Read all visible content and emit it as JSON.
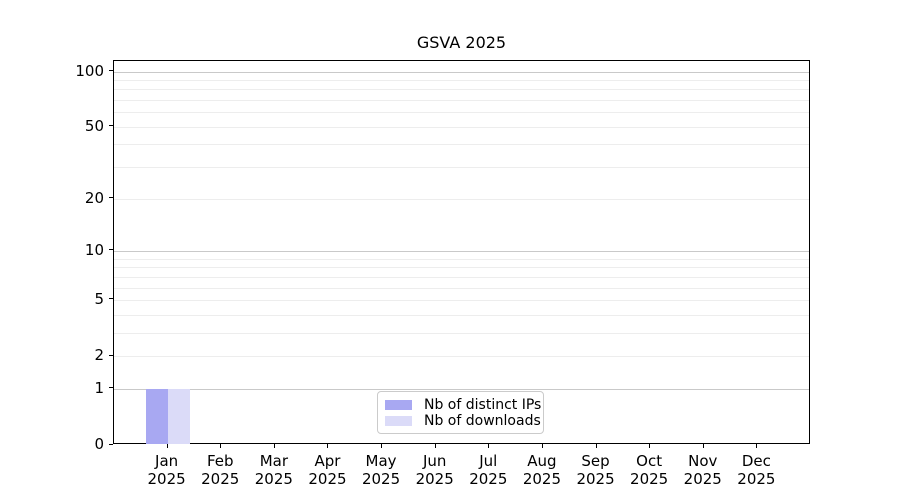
{
  "chart_data": {
    "type": "bar",
    "title": "GSVA 2025",
    "x_categories": [
      "Jan",
      "Feb",
      "Mar",
      "Apr",
      "May",
      "Jun",
      "Jul",
      "Aug",
      "Sep",
      "Oct",
      "Nov",
      "Dec"
    ],
    "x_year_label": "2025",
    "y_scale": "log10(1+x)",
    "ylim": [
      0,
      114
    ],
    "y_tick_labels": [
      0,
      1,
      2,
      5,
      10,
      20,
      50,
      100
    ],
    "major_gridlines": [
      1,
      10,
      100
    ],
    "minor_gridlines": [
      2,
      3,
      4,
      5,
      6,
      7,
      8,
      9,
      20,
      30,
      40,
      50,
      60,
      70,
      80,
      90
    ],
    "grid": "horizontal",
    "legend_position": "bottom-center",
    "series": [
      {
        "name": "Nb of distinct IPs",
        "color": "#a8a8f2",
        "values": [
          1,
          0,
          0,
          0,
          0,
          0,
          0,
          0,
          0,
          0,
          0,
          0
        ]
      },
      {
        "name": "Nb of downloads",
        "color": "#dbdbf8",
        "values": [
          1,
          0,
          0,
          0,
          0,
          0,
          0,
          0,
          0,
          0,
          0,
          0
        ]
      }
    ]
  },
  "colors": {
    "background": "#ffffff",
    "spine": "#000000",
    "major_grid": "#c9c9c9",
    "minor_grid": "#ededed",
    "legend_border": "#cbcbcb",
    "text": "#000000"
  }
}
